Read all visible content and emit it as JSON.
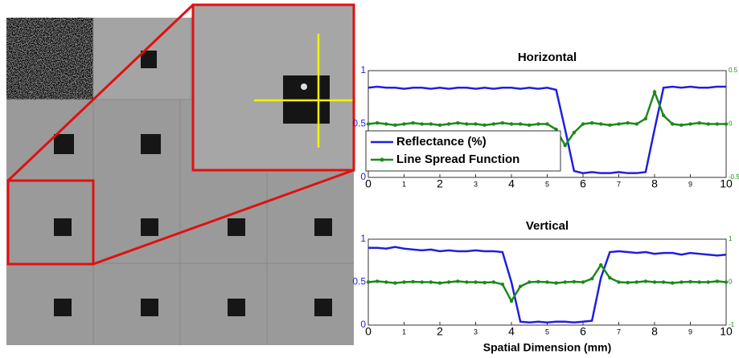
{
  "chart_data": [
    {
      "type": "line",
      "title": "Horizontal",
      "x": [
        0,
        0.25,
        0.5,
        0.75,
        1,
        1.25,
        1.5,
        1.75,
        2,
        2.25,
        2.5,
        2.75,
        3,
        3.25,
        3.5,
        3.75,
        4,
        4.25,
        4.5,
        4.75,
        5,
        5.25,
        5.5,
        5.75,
        6,
        6.25,
        6.5,
        6.75,
        7,
        7.25,
        7.5,
        7.75,
        8,
        8.25,
        8.5,
        8.75,
        9,
        9.25,
        9.5,
        9.75,
        10
      ],
      "series": [
        {
          "name": "Reflectance (%)",
          "color": "#1f1fe0",
          "marker": false,
          "values": [
            0.84,
            0.85,
            0.84,
            0.84,
            0.83,
            0.84,
            0.84,
            0.83,
            0.84,
            0.83,
            0.84,
            0.84,
            0.83,
            0.84,
            0.83,
            0.84,
            0.84,
            0.83,
            0.84,
            0.83,
            0.84,
            0.82,
            0.45,
            0.06,
            0.04,
            0.05,
            0.04,
            0.04,
            0.05,
            0.04,
            0.04,
            0.05,
            0.45,
            0.84,
            0.85,
            0.84,
            0.85,
            0.84,
            0.84,
            0.85,
            0.85
          ]
        },
        {
          "name": "Line Spread Function",
          "color": "#1a8a1a",
          "marker": true,
          "axis": "y2",
          "values": [
            0,
            0.01,
            0,
            -0.01,
            0,
            0.01,
            0,
            0,
            -0.01,
            0,
            0.01,
            0,
            0,
            -0.01,
            0,
            0.01,
            0,
            0,
            -0.01,
            0,
            0,
            -0.05,
            -0.2,
            -0.08,
            0,
            0.01,
            0,
            -0.01,
            0,
            0.01,
            0,
            0.05,
            0.3,
            0.08,
            0,
            -0.01,
            0,
            0.01,
            0,
            0,
            0
          ]
        }
      ],
      "xlim": [
        0,
        10
      ],
      "xticks": [
        0,
        1,
        2,
        3,
        4,
        5,
        6,
        7,
        8,
        9,
        10
      ],
      "ylim": [
        0,
        1
      ],
      "yticks": [
        0,
        0.5,
        1
      ],
      "y2lim": [
        -0.5,
        0.5
      ],
      "y2ticks": [
        -0.5,
        0,
        0.5
      ],
      "legend": "lower left"
    },
    {
      "type": "line",
      "title": "Vertical",
      "xlabel": "Spatial Dimension (mm)",
      "x": [
        0,
        0.25,
        0.5,
        0.75,
        1,
        1.25,
        1.5,
        1.75,
        2,
        2.25,
        2.5,
        2.75,
        3,
        3.25,
        3.5,
        3.75,
        4,
        4.25,
        4.5,
        4.75,
        5,
        5.25,
        5.5,
        5.75,
        6,
        6.25,
        6.5,
        6.75,
        7,
        7.25,
        7.5,
        7.75,
        8,
        8.25,
        8.5,
        8.75,
        9,
        9.25,
        9.5,
        9.75,
        10
      ],
      "series": [
        {
          "color": "#1f1fe0",
          "marker": false,
          "values": [
            0.9,
            0.9,
            0.89,
            0.91,
            0.89,
            0.88,
            0.87,
            0.88,
            0.86,
            0.87,
            0.86,
            0.86,
            0.87,
            0.86,
            0.86,
            0.85,
            0.5,
            0.04,
            0.03,
            0.04,
            0.03,
            0.04,
            0.04,
            0.03,
            0.04,
            0.05,
            0.55,
            0.85,
            0.86,
            0.85,
            0.84,
            0.85,
            0.83,
            0.84,
            0.84,
            0.82,
            0.84,
            0.83,
            0.82,
            0.81,
            0.82
          ]
        },
        {
          "color": "#1a8a1a",
          "marker": true,
          "axis": "y2",
          "values": [
            0,
            0.02,
            0,
            -0.02,
            0,
            0.01,
            0,
            0,
            -0.02,
            0,
            0.02,
            0,
            0,
            -0.01,
            0,
            -0.05,
            -0.44,
            -0.1,
            0,
            0.01,
            0,
            -0.02,
            0,
            0.01,
            0,
            0.08,
            0.4,
            0.1,
            0,
            -0.01,
            0,
            0.02,
            0,
            0,
            -0.02,
            0,
            0.01,
            0,
            0,
            0.02,
            0
          ]
        }
      ],
      "xlim": [
        0,
        10
      ],
      "xticks": [
        0,
        1,
        2,
        3,
        4,
        5,
        6,
        7,
        8,
        9,
        10
      ],
      "ylim": [
        0,
        1
      ],
      "yticks": [
        0,
        0.5,
        1
      ],
      "y2lim": [
        -1,
        1
      ],
      "y2ticks": [
        -1,
        0,
        1
      ]
    }
  ]
}
